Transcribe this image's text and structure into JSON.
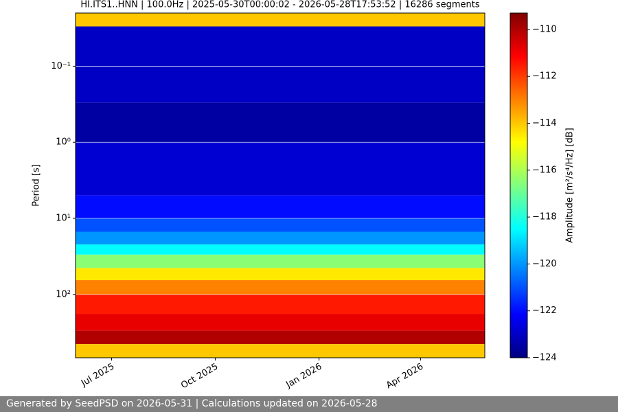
{
  "chart_data": {
    "type": "heatmap",
    "title": "HI.ITS1..HNN | 100.0Hz | 2025-05-30T00:00:02 - 2026-05-28T17:53:52 | 16286 segments",
    "ylabel": "Period [s]",
    "colorbar_label": "Amplitude [m²/s⁴/Hz] [dB]",
    "xlim": [
      "2025-05-30",
      "2026-05-28"
    ],
    "xticks": [
      {
        "value": "2025-07",
        "label": "Jul 2025"
      },
      {
        "value": "2025-10",
        "label": "Oct 2025"
      },
      {
        "value": "2026-01",
        "label": "Jan 2026"
      },
      {
        "value": "2026-04",
        "label": "Apr 2026"
      }
    ],
    "ylim": [
      0.02,
      680
    ],
    "ylog": true,
    "yinverted": true,
    "yticks": [
      {
        "value": 0.1,
        "label": "10⁻¹"
      },
      {
        "value": 1,
        "label": "10⁰"
      },
      {
        "value": 10,
        "label": "10¹"
      },
      {
        "value": 100,
        "label": "10²"
      }
    ],
    "grid": true,
    "colormap": "jet",
    "zlim": [
      -124,
      -109.3
    ],
    "zticks": [
      {
        "value": -124,
        "label": "−124"
      },
      {
        "value": -122,
        "label": "−122"
      },
      {
        "value": -120,
        "label": "−120"
      },
      {
        "value": -118,
        "label": "−118"
      },
      {
        "value": -116,
        "label": "−116"
      },
      {
        "value": -114,
        "label": "−114"
      },
      {
        "value": -112,
        "label": "−112"
      },
      {
        "value": -110,
        "label": "−110"
      }
    ],
    "period_edges": [
      0.02,
      0.03,
      0.3,
      1,
      5,
      10,
      15,
      22,
      30,
      45,
      65,
      100,
      180,
      300,
      450,
      680
    ],
    "values": [
      -114,
      -123,
      -123.5,
      -122.8,
      -122,
      -121,
      -120,
      -118.5,
      -116.5,
      -114.5,
      -113,
      -111.5,
      -110.8,
      -110,
      -114
    ],
    "footer": "Generated by SeedPSD on 2026-05-31 | Calculations updated on 2026-05-28"
  }
}
